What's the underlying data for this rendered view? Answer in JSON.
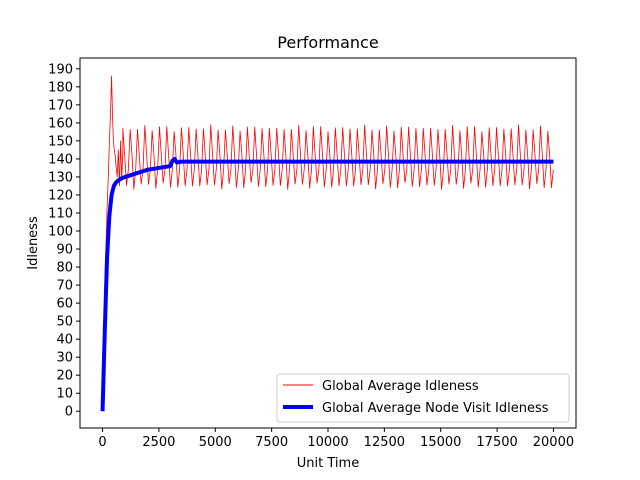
{
  "chart_data": {
    "type": "line",
    "title": "Performance",
    "xlabel": "Unit Time",
    "ylabel": "Idleness",
    "xlim": [
      -1000,
      21000
    ],
    "ylim": [
      -9.3,
      196
    ],
    "x_ticks": [
      0,
      2500,
      5000,
      7500,
      10000,
      12500,
      15000,
      17500,
      20000
    ],
    "y_ticks": [
      0,
      10,
      20,
      30,
      40,
      50,
      60,
      70,
      80,
      90,
      100,
      110,
      120,
      130,
      140,
      150,
      160,
      170,
      180,
      190
    ],
    "grid": false,
    "legend_position": "lower right",
    "series": [
      {
        "name": "Global Average Idleness",
        "color": "#ff0000",
        "style": "thin",
        "oscillation": {
          "period": 325,
          "min": 124,
          "max": 158,
          "mean": 138,
          "from": 900,
          "to": 20000
        },
        "startup": {
          "x": [
            0,
            40,
            80,
            120,
            160,
            200,
            240,
            280,
            320,
            360,
            400,
            440,
            480,
            520,
            560,
            600,
            650,
            700,
            750,
            800,
            850,
            900
          ],
          "y": [
            0,
            35,
            60,
            80,
            95,
            112,
            125,
            140,
            155,
            168,
            186,
            165,
            150,
            145,
            142,
            136,
            130,
            145,
            125,
            150,
            128,
            145
          ]
        }
      },
      {
        "name": "Global Average Node Visit Idleness",
        "color": "#0000ff",
        "style": "thick",
        "x": [
          0,
          100,
          200,
          300,
          400,
          500,
          600,
          800,
          1000,
          1500,
          2000,
          2500,
          3000,
          3100,
          3200,
          3300,
          3500,
          5000,
          7500,
          10000,
          12500,
          15000,
          17500,
          20000
        ],
        "y": [
          0,
          45,
          85,
          108,
          120,
          125,
          127,
          129,
          130,
          132,
          134,
          135,
          136,
          139,
          140,
          138,
          138.5,
          138.5,
          138.5,
          138.5,
          138.5,
          138.5,
          138.5,
          138.5
        ]
      }
    ]
  }
}
